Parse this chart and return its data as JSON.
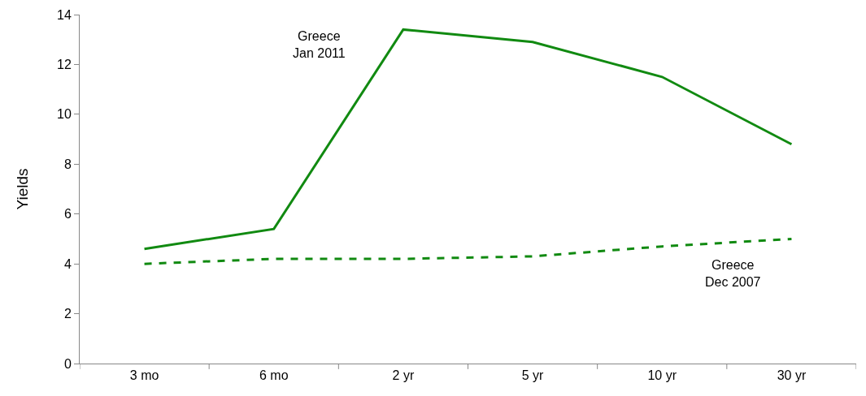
{
  "chart_data": {
    "type": "line",
    "ylabel": "Yields",
    "categories": [
      "3 mo",
      "6 mo",
      "2 yr",
      "5 yr",
      "10 yr",
      "30 yr"
    ],
    "ylim": [
      0,
      14
    ],
    "yticks": [
      0,
      2,
      4,
      6,
      8,
      10,
      12,
      14
    ],
    "grid": false,
    "legend": false,
    "marker": "none",
    "series": [
      {
        "name": "Greece\nJan 2011",
        "color": "#118a11",
        "line_style": "solid",
        "values": [
          4.6,
          5.4,
          13.4,
          12.9,
          11.5,
          8.8
        ]
      },
      {
        "name": "Greece\nDec 2007",
        "color": "#118a11",
        "line_style": "dashed",
        "values": [
          4.0,
          4.2,
          4.2,
          4.3,
          4.7,
          5.0
        ]
      }
    ]
  }
}
